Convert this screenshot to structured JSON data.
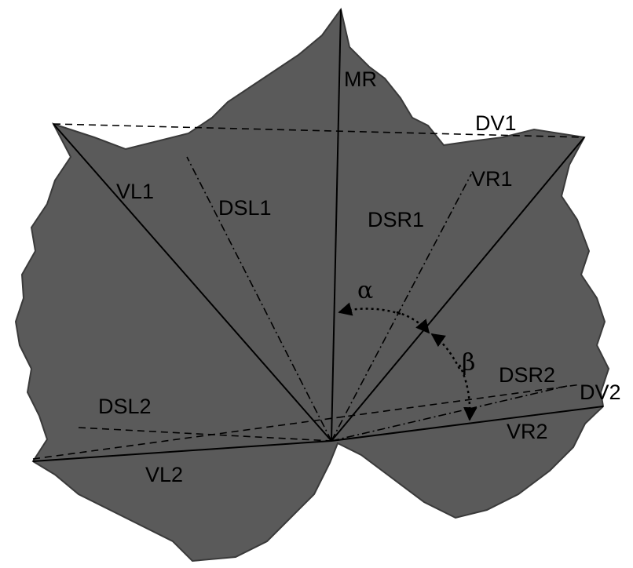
{
  "labels": [
    "MR",
    "DV1",
    "VR1",
    "VL1",
    "DSL1",
    "DSR1",
    "α",
    "β",
    "DSR2",
    "DV2",
    "DSL2",
    "VR2",
    "VL2"
  ]
}
